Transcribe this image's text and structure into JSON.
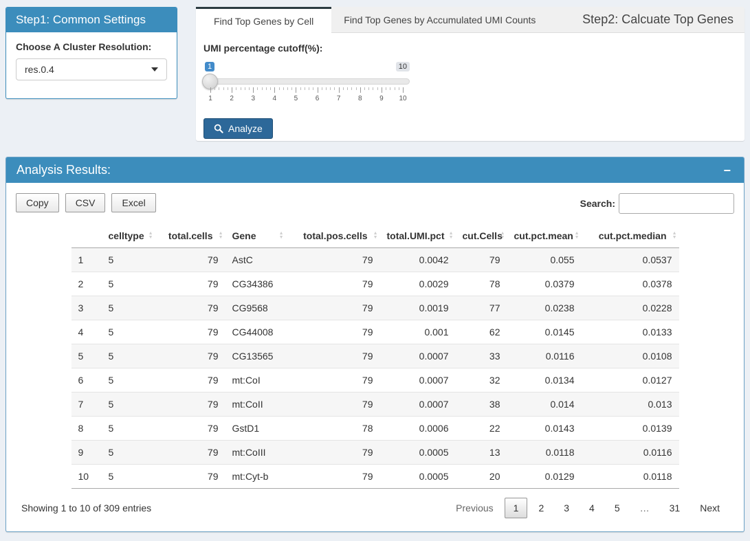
{
  "colors": {
    "header_blue": "#3c8dbc",
    "active_tab_border": "#2c3b41",
    "analyze_button": "#2d6899",
    "slider_badge_blue": "#428bca",
    "page_bg": "#ecf0f5"
  },
  "step1": {
    "title": "Step1: Common Settings",
    "cluster_label": "Choose A Cluster Resolution:",
    "cluster_value": "res.0.4"
  },
  "step2": {
    "title": "Step2: Calcuate Top Genes",
    "tabs": [
      "Find Top Genes by Cell",
      "Find Top Genes by Accumulated UMI Counts"
    ],
    "active_tab": "Find Top Genes by Cell",
    "slider": {
      "label": "UMI percentage cutoff(%):",
      "value": "1",
      "max": "10",
      "tick_labels": [
        "1",
        "2",
        "3",
        "4",
        "5",
        "6",
        "7",
        "8",
        "9",
        "10"
      ]
    },
    "analyze_label": "Analyze"
  },
  "results": {
    "title": "Analysis Results:",
    "collapse_icon": "−",
    "export_buttons": [
      "Copy",
      "CSV",
      "Excel"
    ],
    "search_label": "Search:",
    "search_value": "",
    "table": {
      "row_number_header": "",
      "columns": [
        "celltype",
        "total.cells",
        "Gene",
        "total.pos.cells",
        "total.UMI.pct",
        "cut.Cells",
        "cut.pct.mean",
        "cut.pct.median"
      ],
      "rows": [
        [
          "1",
          "5",
          "79",
          "AstC",
          "79",
          "0.0042",
          "79",
          "0.055",
          "0.0537"
        ],
        [
          "2",
          "5",
          "79",
          "CG34386",
          "79",
          "0.0029",
          "78",
          "0.0379",
          "0.0378"
        ],
        [
          "3",
          "5",
          "79",
          "CG9568",
          "79",
          "0.0019",
          "77",
          "0.0238",
          "0.0228"
        ],
        [
          "4",
          "5",
          "79",
          "CG44008",
          "79",
          "0.001",
          "62",
          "0.0145",
          "0.0133"
        ],
        [
          "5",
          "5",
          "79",
          "CG13565",
          "79",
          "0.0007",
          "33",
          "0.0116",
          "0.0108"
        ],
        [
          "6",
          "5",
          "79",
          "mt:CoI",
          "79",
          "0.0007",
          "32",
          "0.0134",
          "0.0127"
        ],
        [
          "7",
          "5",
          "79",
          "mt:CoII",
          "79",
          "0.0007",
          "38",
          "0.014",
          "0.013"
        ],
        [
          "8",
          "5",
          "79",
          "GstD1",
          "78",
          "0.0006",
          "22",
          "0.0143",
          "0.0139"
        ],
        [
          "9",
          "5",
          "79",
          "mt:CoIII",
          "79",
          "0.0005",
          "13",
          "0.0118",
          "0.0116"
        ],
        [
          "10",
          "5",
          "79",
          "mt:Cyt-b",
          "79",
          "0.0005",
          "20",
          "0.0129",
          "0.0118"
        ]
      ]
    },
    "info": "Showing 1 to 10 of 309 entries",
    "pagination": {
      "previous": "Previous",
      "pages": [
        "1",
        "2",
        "3",
        "4",
        "5",
        "…",
        "31"
      ],
      "active_page": "1",
      "next": "Next"
    }
  }
}
